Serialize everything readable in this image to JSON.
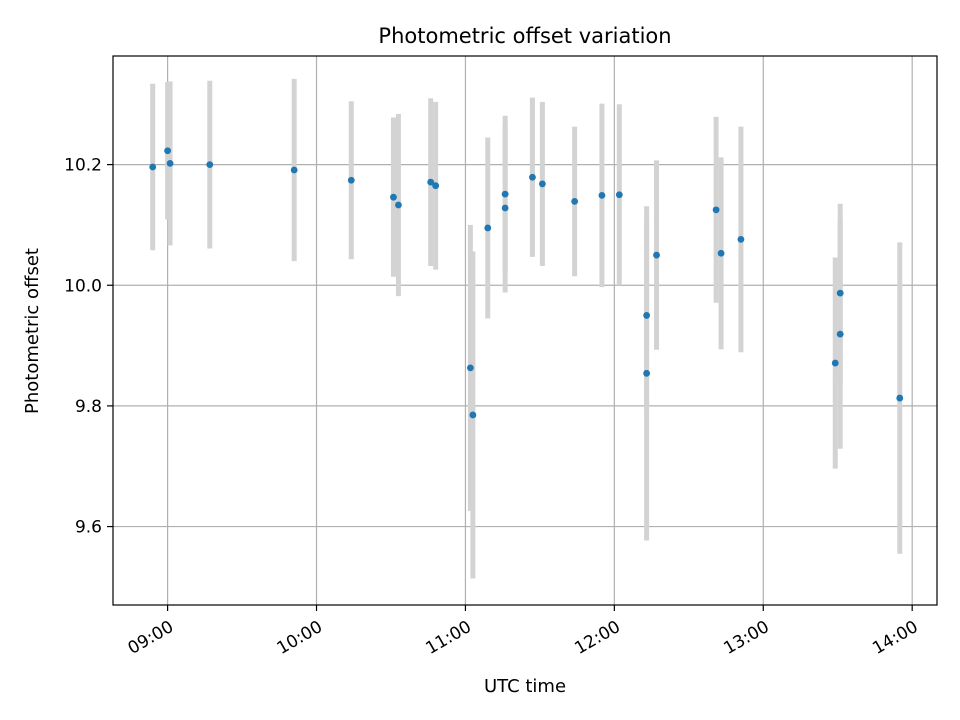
{
  "chart_data": {
    "type": "scatter",
    "title": "Photometric offset variation",
    "xlabel": "UTC time",
    "ylabel": "Photometric offset",
    "grid": true,
    "xlim": [
      "08:38",
      "14:10"
    ],
    "ylim": [
      9.47,
      10.38
    ],
    "x_ticks": [
      "09:00",
      "10:00",
      "11:00",
      "12:00",
      "13:00",
      "14:00"
    ],
    "y_ticks": [
      9.6,
      9.8,
      10.0,
      10.2
    ],
    "colors": {
      "point": "#1f77b4",
      "errorbar": "#d3d3d3",
      "grid": "#b0b0b0"
    },
    "points": [
      {
        "x": "08:54",
        "y": 10.196,
        "yerr": 0.138
      },
      {
        "x": "09:00",
        "y": 10.223,
        "yerr": 0.114
      },
      {
        "x": "09:01",
        "y": 10.202,
        "yerr": 0.136
      },
      {
        "x": "09:17",
        "y": 10.2,
        "yerr": 0.139
      },
      {
        "x": "09:51",
        "y": 10.191,
        "yerr": 0.151
      },
      {
        "x": "10:14",
        "y": 10.174,
        "yerr": 0.131
      },
      {
        "x": "10:31",
        "y": 10.146,
        "yerr": 0.132
      },
      {
        "x": "10:33",
        "y": 10.133,
        "yerr": 0.151
      },
      {
        "x": "10:46",
        "y": 10.171,
        "yerr": 0.139
      },
      {
        "x": "10:48",
        "y": 10.165,
        "yerr": 0.139
      },
      {
        "x": "11:02",
        "y": 9.863,
        "yerr": 0.237
      },
      {
        "x": "11:03",
        "y": 9.785,
        "yerr": 0.271
      },
      {
        "x": "11:09",
        "y": 10.095,
        "yerr": 0.15
      },
      {
        "x": "11:16",
        "y": 10.151,
        "yerr": 0.13
      },
      {
        "x": "11:16",
        "y": 10.128,
        "yerr": 0.14
      },
      {
        "x": "11:27",
        "y": 10.179,
        "yerr": 0.132
      },
      {
        "x": "11:31",
        "y": 10.168,
        "yerr": 0.136
      },
      {
        "x": "11:44",
        "y": 10.139,
        "yerr": 0.124
      },
      {
        "x": "11:55",
        "y": 10.149,
        "yerr": 0.152
      },
      {
        "x": "12:02",
        "y": 10.15,
        "yerr": 0.15
      },
      {
        "x": "12:13",
        "y": 9.854,
        "yerr": 0.277
      },
      {
        "x": "12:13",
        "y": 9.95,
        "yerr": 0.158
      },
      {
        "x": "12:17",
        "y": 10.05,
        "yerr": 0.157
      },
      {
        "x": "12:41",
        "y": 10.125,
        "yerr": 0.154
      },
      {
        "x": "12:43",
        "y": 10.053,
        "yerr": 0.159
      },
      {
        "x": "12:51",
        "y": 10.076,
        "yerr": 0.187
      },
      {
        "x": "13:29",
        "y": 9.871,
        "yerr": 0.175
      },
      {
        "x": "13:31",
        "y": 9.987,
        "yerr": 0.148
      },
      {
        "x": "13:31",
        "y": 9.919,
        "yerr": 0.19
      },
      {
        "x": "13:55",
        "y": 9.813,
        "yerr": 0.258
      }
    ]
  }
}
